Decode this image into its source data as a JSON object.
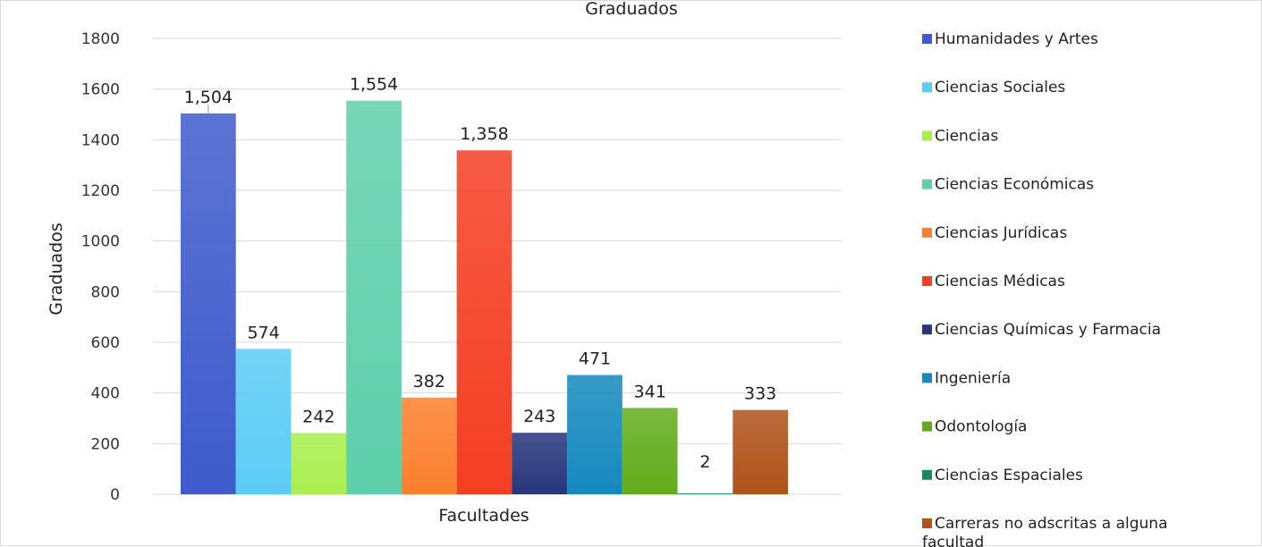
{
  "chart_data": {
    "type": "bar",
    "title": "Graduados",
    "xlabel": "Facultades",
    "ylabel": "Graduados",
    "category": "Facultades",
    "ylim": [
      0,
      1800
    ],
    "yticks": [
      0,
      200,
      400,
      600,
      800,
      1000,
      1200,
      1400,
      1600,
      1800
    ],
    "grid": true,
    "legend_position": "right",
    "series": [
      {
        "name": "Humanidades y Artes",
        "value": 1504,
        "label": "1,504",
        "color": "#3f5bcc"
      },
      {
        "name": "Ciencias Sociales",
        "value": 574,
        "label": "574",
        "color": "#5bccf5"
      },
      {
        "name": "Ciencias",
        "value": 242,
        "label": "242",
        "color": "#a9ee4e"
      },
      {
        "name": "Ciencias Económicas",
        "value": 1554,
        "label": "1,554",
        "color": "#5ecfaa"
      },
      {
        "name": "Ciencias Jurídicas",
        "value": 382,
        "label": "382",
        "color": "#fb7f2c"
      },
      {
        "name": "Ciencias Médicas",
        "value": 1358,
        "label": "1,358",
        "color": "#f43e22"
      },
      {
        "name": "Ciencias Químicas y Farmacia",
        "value": 243,
        "label": "243",
        "color": "#27357c"
      },
      {
        "name": "Ingeniería",
        "value": 471,
        "label": "471",
        "color": "#1489be"
      },
      {
        "name": "Odontología",
        "value": 341,
        "label": "341",
        "color": "#62ac1c"
      },
      {
        "name": "Ciencias Espaciales",
        "value": 2,
        "label": "2",
        "color": "#138a5f"
      },
      {
        "name": "Carreras no adscritas a alguna facultad",
        "value": 333,
        "label": "333",
        "color": "#b0521a"
      }
    ]
  }
}
